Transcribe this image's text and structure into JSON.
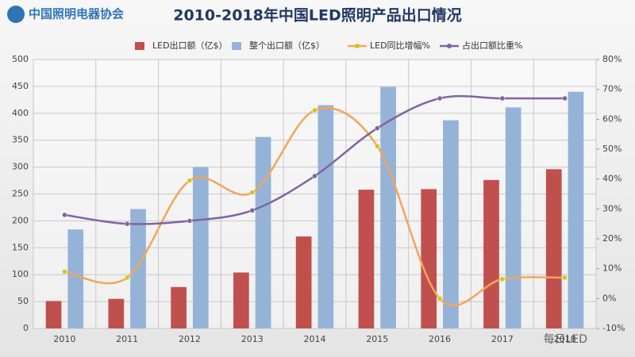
{
  "logo": "中国照明电器协会",
  "watermark": "每日LED",
  "chart_data": {
    "type": "combo",
    "title": "2010-2018年中国LED照明产品出口情况",
    "categories": [
      "2010",
      "2011",
      "2012",
      "2013",
      "2014",
      "2015",
      "2016",
      "2017",
      "2018"
    ],
    "series": [
      {
        "name": "LED出口额（亿$）",
        "type": "bar",
        "color": "#c0504d",
        "values": [
          51,
          55,
          77,
          104,
          171,
          258,
          259,
          276,
          296
        ]
      },
      {
        "name": "整个出口额（亿$）",
        "type": "bar",
        "color": "#95b3d7",
        "values": [
          184,
          222,
          300,
          356,
          415,
          449,
          387,
          411,
          440
        ]
      },
      {
        "name": "LED同比增幅%",
        "type": "line",
        "axis": "y2",
        "color": "#f2a65a",
        "marker_color": "#d8c21a",
        "values": [
          9,
          7,
          39.5,
          35.5,
          63,
          51,
          0,
          6.5,
          7
        ]
      },
      {
        "name": "占出口额比重%",
        "type": "line",
        "axis": "y2",
        "color": "#8064a2",
        "marker_color": "#8064a2",
        "values": [
          28,
          25,
          26,
          29.5,
          41,
          57,
          67,
          67,
          67
        ]
      }
    ],
    "ylim": [
      0,
      500
    ],
    "yticks": [
      0,
      50,
      100,
      150,
      200,
      250,
      300,
      350,
      400,
      450,
      500
    ],
    "y2lim": [
      -10,
      80
    ],
    "y2ticks": [
      {
        "value": -10,
        "label": "-10%"
      },
      {
        "value": 0,
        "label": "0%"
      },
      {
        "value": 10,
        "label": "10%"
      },
      {
        "value": 20,
        "label": "20%"
      },
      {
        "value": 30,
        "label": "30%"
      },
      {
        "value": 40,
        "label": "40%"
      },
      {
        "value": 50,
        "label": "50%"
      },
      {
        "value": 60,
        "label": "60%"
      },
      {
        "value": 70,
        "label": "70%"
      },
      {
        "value": 80,
        "label": "80%"
      }
    ],
    "grid": true,
    "smooth": true,
    "legend": "top"
  }
}
